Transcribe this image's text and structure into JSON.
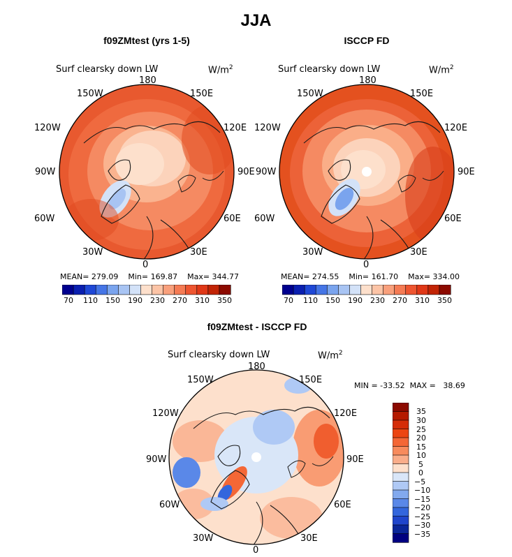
{
  "title": "JJA",
  "panels": [
    {
      "title": "f09ZMtest (yrs 1-5)",
      "variable": "Surf clearsky down LW",
      "units": "W/m",
      "units_sup": "2",
      "stats": "MEAN= 279.09    Min= 169.87    Max= 344.77",
      "colorbar_ticks": [
        "70",
        "110",
        "150",
        "190",
        "230",
        "270",
        "310",
        "350"
      ]
    },
    {
      "title": "ISCCP FD",
      "variable": "Surf clearsky down LW",
      "units": "W/m",
      "units_sup": "2",
      "stats": "MEAN= 274.55    Min= 161.70    Max= 334.00",
      "colorbar_ticks": [
        "70",
        "110",
        "150",
        "190",
        "230",
        "270",
        "310",
        "350"
      ]
    },
    {
      "title": "f09ZMtest - ISCCP FD",
      "variable": "Surf clearsky down LW",
      "units": "W/m",
      "units_sup": "2",
      "stats": "MIN = -33.52  MAX =   38.69",
      "colorbar_ticks": [
        "35",
        "30",
        "25",
        "20",
        "15",
        "10",
        "5",
        "0",
        "−5",
        "−10",
        "−15",
        "−20",
        "−25",
        "−30",
        "−35"
      ]
    }
  ],
  "lon_labels": {
    "n180": "180",
    "e150": "150E",
    "e120": "120E",
    "e90": "90E",
    "e60": "60E",
    "e30": "30E",
    "z0": "0",
    "w30": "30W",
    "w60": "60W",
    "w90": "90W",
    "w120": "120W",
    "w150": "150W"
  },
  "colors": {
    "abs_scale": [
      "#00008f",
      "#0a1fb0",
      "#1f48d6",
      "#4575e6",
      "#7aa4ee",
      "#a8c4f3",
      "#d3e2f8",
      "#fde0cc",
      "#fcc4a6",
      "#f9a07c",
      "#f57b54",
      "#ee5530",
      "#e03817",
      "#c22405",
      "#8c0a00"
    ],
    "diff_scale": [
      "#8c0a00",
      "#b51a00",
      "#d52d08",
      "#ec4512",
      "#f46736",
      "#f78b5d",
      "#f9ad8a",
      "#fde0cc",
      "#d9e6f8",
      "#afc9f5",
      "#82a9ee",
      "#5a88e8",
      "#3366dd",
      "#1f45cc",
      "#0a2699",
      "#000080"
    ]
  }
}
